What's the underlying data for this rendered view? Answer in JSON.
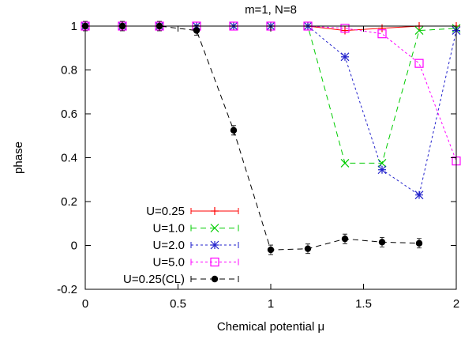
{
  "chart_data": {
    "type": "line",
    "title": "m=1, N=8",
    "xlabel": "Chemical potential μ",
    "ylabel": "phase",
    "xlim": [
      0,
      2
    ],
    "ylim": [
      -0.2,
      1
    ],
    "xticks": [
      0,
      0.5,
      1,
      1.5,
      2
    ],
    "xtick_labels": [
      "0",
      "0.5",
      "1",
      "1.5",
      "2"
    ],
    "yticks": [
      -0.2,
      0,
      0.2,
      0.4,
      0.6,
      0.8,
      1
    ],
    "ytick_labels": [
      "-0.2",
      "0",
      "0.2",
      "0.4",
      "0.6",
      "0.8",
      "1"
    ],
    "grid": false,
    "legend_position": "bottom-left",
    "series": [
      {
        "name": "U=0.25",
        "color": "#ff0000",
        "marker": "plus",
        "dash": "solid",
        "x": [
          0,
          0.2,
          0.4,
          0.6,
          0.8,
          1.0,
          1.2,
          1.4,
          1.6,
          1.8,
          2.0
        ],
        "y": [
          1,
          1,
          1,
          1,
          1,
          1,
          1,
          0.98,
          0.99,
          1,
          1
        ]
      },
      {
        "name": "U=1.0",
        "color": "#00cc00",
        "marker": "x",
        "dash": "dashed",
        "x": [
          0,
          0.2,
          0.4,
          0.6,
          0.8,
          1.0,
          1.2,
          1.4,
          1.6,
          1.8,
          2.0
        ],
        "y": [
          1,
          1,
          1,
          1,
          1,
          1,
          1,
          0.375,
          0.375,
          0.98,
          0.99
        ]
      },
      {
        "name": "U=2.0",
        "color": "#2222cc",
        "marker": "star",
        "dash": "dotted",
        "x": [
          0,
          0.2,
          0.4,
          0.6,
          0.8,
          1.0,
          1.2,
          1.4,
          1.6,
          1.8,
          2.0
        ],
        "y": [
          1,
          1,
          1,
          1,
          1,
          1,
          1,
          0.86,
          0.345,
          0.23,
          0.98
        ]
      },
      {
        "name": "U=5.0",
        "color": "#ff00ff",
        "marker": "square",
        "dash": "dotted",
        "x": [
          0,
          0.2,
          0.4,
          0.6,
          0.8,
          1.0,
          1.2,
          1.4,
          1.6,
          1.8,
          2.0
        ],
        "y": [
          1,
          1,
          1,
          1,
          1,
          1,
          1,
          0.99,
          0.965,
          0.83,
          0.385
        ]
      },
      {
        "name": "U=0.25(CL)",
        "color": "#000000",
        "marker": "circle",
        "dash": "dashed",
        "x": [
          0,
          0.2,
          0.4,
          0.6,
          0.8,
          1.0,
          1.2,
          1.4,
          1.6,
          1.8
        ],
        "y": [
          1,
          1,
          1,
          0.98,
          0.525,
          -0.02,
          -0.015,
          0.03,
          0.015,
          0.01
        ]
      }
    ]
  }
}
